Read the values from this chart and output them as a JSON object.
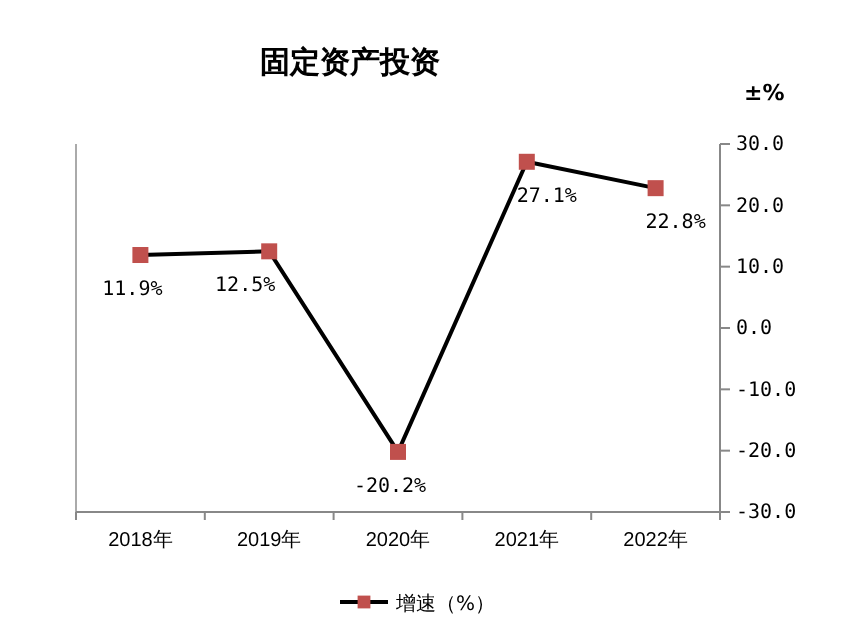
{
  "chart_data": {
    "type": "line",
    "title": "固定资产投资",
    "ylabel": "±%",
    "categories": [
      "2018年",
      "2019年",
      "2020年",
      "2021年",
      "2022年"
    ],
    "series": [
      {
        "name": "增速（%）",
        "color": "#c0504d",
        "values": [
          11.9,
          12.5,
          -20.2,
          27.1,
          22.8
        ],
        "axis": "y2"
      }
    ],
    "value_labels": [
      "11.9%",
      "12.5%",
      "-20.2%",
      "27.1%",
      "22.8%"
    ],
    "y2lim": [
      -30,
      30
    ],
    "y2ticks": [
      {
        "value": -30,
        "label": "-30.0"
      },
      {
        "value": -20,
        "label": "-20.0"
      },
      {
        "value": -10,
        "label": "-10.0"
      },
      {
        "value": 0,
        "label": "0.0"
      },
      {
        "value": 10,
        "label": "10.0"
      },
      {
        "value": 20,
        "label": "20.0"
      },
      {
        "value": 30,
        "label": "30.0"
      }
    ],
    "marker": "square",
    "line_style": "solid",
    "legend": "bottom",
    "grid": false
  }
}
